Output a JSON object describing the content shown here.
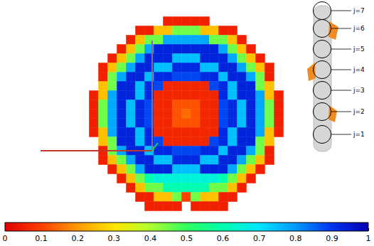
{
  "chart_data": {
    "type": "heatmap",
    "x": [
      -10,
      -9,
      -8,
      -7,
      -6,
      -5,
      -4,
      -3,
      -2,
      -1,
      0,
      1,
      2,
      3,
      4,
      5,
      6,
      7,
      8,
      9,
      10
    ],
    "y": [
      10,
      9,
      8,
      7,
      6,
      5,
      4,
      3,
      2,
      1,
      0,
      -1,
      -2,
      -3,
      -4,
      -5,
      -6,
      -7,
      -8,
      -9,
      -10
    ],
    "cells": [
      [
        null,
        null,
        null,
        null,
        null,
        null,
        null,
        null,
        0.05,
        0.05,
        0.05,
        0.05,
        0.05,
        null,
        null,
        null,
        null,
        null,
        null,
        null,
        null
      ],
      [
        null,
        null,
        null,
        null,
        null,
        0.05,
        0.05,
        0.25,
        0.25,
        0.45,
        0.45,
        0.45,
        0.25,
        0.25,
        0.05,
        0.05,
        null,
        null,
        null,
        null,
        null
      ],
      [
        null,
        null,
        null,
        null,
        0.05,
        0.25,
        0.45,
        0.45,
        0.78,
        0.78,
        0.78,
        0.78,
        0.78,
        0.45,
        0.45,
        0.25,
        0.05,
        null,
        null,
        null,
        null
      ],
      [
        null,
        null,
        null,
        0.05,
        0.25,
        0.45,
        0.78,
        0.93,
        0.93,
        0.93,
        0.93,
        0.93,
        0.93,
        0.93,
        0.78,
        0.45,
        0.25,
        0.05,
        null,
        null,
        null
      ],
      [
        null,
        null,
        0.05,
        0.25,
        0.45,
        0.78,
        0.93,
        0.93,
        0.93,
        0.75,
        0.75,
        0.75,
        0.93,
        0.93,
        0.93,
        0.78,
        0.45,
        0.25,
        0.05,
        null,
        null
      ],
      [
        null,
        0.05,
        0.25,
        0.45,
        0.78,
        0.93,
        0.93,
        0.75,
        0.75,
        0.92,
        0.92,
        0.92,
        0.75,
        0.75,
        0.93,
        0.93,
        0.78,
        0.45,
        0.25,
        0.05,
        null
      ],
      [
        null,
        0.05,
        0.45,
        0.78,
        0.93,
        0.93,
        0.75,
        0.92,
        0.92,
        0.88,
        0.88,
        0.88,
        0.92,
        0.92,
        0.75,
        0.93,
        0.93,
        0.78,
        0.45,
        0.05,
        null
      ],
      [
        null,
        0.25,
        0.45,
        0.93,
        0.93,
        0.75,
        0.92,
        0.88,
        0.06,
        0.06,
        0.06,
        0.06,
        0.06,
        0.88,
        0.92,
        0.75,
        0.93,
        0.93,
        0.45,
        0.25,
        null
      ],
      [
        0.05,
        0.25,
        0.78,
        0.93,
        0.93,
        0.75,
        0.92,
        0.06,
        0.06,
        0.06,
        0.06,
        0.06,
        0.06,
        0.06,
        0.92,
        0.75,
        0.93,
        0.93,
        0.78,
        0.25,
        0.05
      ],
      [
        0.05,
        0.45,
        0.78,
        0.93,
        0.75,
        0.92,
        0.88,
        0.06,
        0.06,
        0.12,
        0.12,
        0.12,
        0.06,
        0.06,
        0.88,
        0.92,
        0.75,
        0.93,
        0.78,
        0.45,
        0.05
      ],
      [
        0.05,
        0.45,
        0.78,
        0.93,
        0.75,
        0.92,
        0.88,
        0.06,
        0.06,
        0.12,
        0.15,
        0.12,
        0.06,
        0.06,
        0.88,
        0.92,
        0.75,
        0.93,
        0.78,
        0.45,
        0.05
      ],
      [
        0.05,
        0.45,
        0.78,
        0.93,
        0.75,
        0.92,
        0.88,
        0.06,
        0.06,
        0.12,
        0.12,
        0.12,
        0.06,
        0.06,
        0.88,
        0.92,
        0.75,
        0.93,
        0.78,
        0.45,
        0.05
      ],
      [
        0.05,
        0.25,
        0.78,
        0.93,
        0.93,
        0.75,
        0.92,
        0.06,
        0.06,
        0.06,
        0.06,
        0.06,
        0.06,
        0.06,
        0.92,
        0.75,
        0.93,
        0.93,
        0.78,
        0.25,
        0.05
      ],
      [
        null,
        0.25,
        0.45,
        0.93,
        0.93,
        0.75,
        0.92,
        0.88,
        0.06,
        0.06,
        0.06,
        0.06,
        0.06,
        0.88,
        0.92,
        0.75,
        0.93,
        0.93,
        0.45,
        0.25,
        null
      ],
      [
        null,
        0.05,
        0.45,
        0.78,
        0.93,
        0.93,
        0.75,
        0.92,
        0.92,
        0.88,
        0.88,
        0.88,
        0.92,
        0.92,
        0.75,
        0.93,
        0.93,
        0.78,
        0.45,
        0.05,
        null
      ],
      [
        null,
        0.05,
        0.25,
        0.45,
        0.78,
        0.93,
        0.93,
        0.75,
        0.75,
        0.92,
        0.92,
        0.92,
        0.75,
        0.75,
        0.93,
        0.93,
        0.78,
        0.45,
        0.25,
        0.05,
        null
      ],
      [
        null,
        null,
        0.05,
        0.25,
        0.45,
        0.78,
        0.93,
        0.93,
        0.93,
        0.75,
        0.75,
        0.75,
        0.93,
        0.93,
        0.93,
        0.78,
        0.45,
        0.25,
        0.05,
        null,
        null
      ],
      [
        null,
        null,
        null,
        0.05,
        0.25,
        0.45,
        0.6,
        0.65,
        0.65,
        0.65,
        0.65,
        0.65,
        0.65,
        0.65,
        0.6,
        0.45,
        0.25,
        0.05,
        null,
        null,
        null
      ],
      [
        null,
        null,
        null,
        null,
        0.05,
        0.25,
        0.45,
        0.45,
        0.6,
        0.6,
        0.6,
        0.6,
        0.6,
        0.45,
        0.45,
        0.25,
        0.05,
        null,
        null,
        null,
        null
      ],
      [
        null,
        null,
        null,
        null,
        null,
        0.05,
        0.05,
        0.25,
        0.25,
        0.45,
        0.1,
        0.45,
        0.25,
        0.25,
        0.05,
        0.05,
        null,
        null,
        null,
        null,
        null
      ],
      [
        null,
        null,
        null,
        null,
        null,
        null,
        0.05,
        0.05,
        0.05,
        0.05,
        null,
        0.05,
        0.05,
        0.05,
        0.05,
        null,
        null,
        null,
        null,
        null,
        null
      ]
    ],
    "xlim": [
      -10.5,
      10.5
    ],
    "ylim": [
      -10.5,
      10.5
    ],
    "tick_labels": false,
    "colorbar": {
      "range": [
        0,
        1
      ],
      "ticks": [
        0,
        0.1,
        0.2,
        0.3,
        0.4,
        0.5,
        0.6,
        0.7,
        0.8,
        0.9,
        1
      ]
    },
    "inset_labels": [
      "j=7",
      "j=6",
      "j=5",
      "j=4",
      "j=3",
      "j=2",
      "j=1"
    ]
  }
}
